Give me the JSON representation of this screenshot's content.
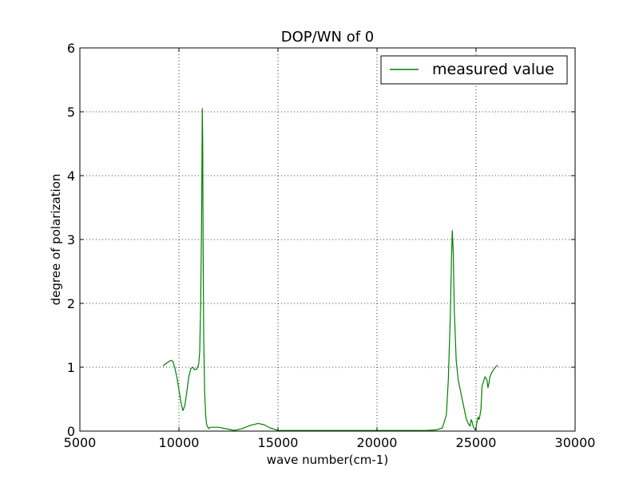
{
  "chart_data": {
    "type": "line",
    "title": "DOP/WN of 0",
    "xlabel": "wave number(cm-1)",
    "ylabel": "degree of polarization",
    "xlim": [
      5000,
      30000
    ],
    "ylim": [
      0,
      6
    ],
    "xticks": [
      5000,
      10000,
      15000,
      20000,
      25000,
      30000
    ],
    "yticks": [
      0,
      1,
      2,
      3,
      4,
      5,
      6
    ],
    "xtick_labels": [
      "5000",
      "10000",
      "15000",
      "20000",
      "25000",
      "30000"
    ],
    "ytick_labels": [
      "0",
      "1",
      "2",
      "3",
      "4",
      "5",
      "6"
    ],
    "grid": true,
    "legend_position": "top-right",
    "series": [
      {
        "name": "measured value",
        "color": "#008000",
        "x": [
          9200,
          9400,
          9600,
          9700,
          9800,
          9900,
          10000,
          10100,
          10200,
          10300,
          10400,
          10500,
          10600,
          10700,
          10800,
          10900,
          11000,
          11050,
          11100,
          11150,
          11180,
          11200,
          11220,
          11250,
          11300,
          11350,
          11400,
          11500,
          11600,
          12000,
          12500,
          12800,
          13200,
          13600,
          14000,
          14300,
          14600,
          15000,
          16000,
          18000,
          20000,
          22000,
          22500,
          23000,
          23300,
          23500,
          23600,
          23700,
          23760,
          23800,
          23850,
          23900,
          24000,
          24100,
          24200,
          24300,
          24400,
          24500,
          24600,
          24700,
          24750,
          24800,
          24850,
          24900,
          24950,
          25000,
          25050,
          25100,
          25150,
          25200,
          25250,
          25300,
          25350,
          25400,
          25450,
          25500,
          25550,
          25600,
          25650,
          25700,
          25800,
          25900,
          26000,
          26100
        ],
        "y": [
          1.02,
          1.07,
          1.11,
          1.09,
          0.98,
          0.84,
          0.65,
          0.45,
          0.32,
          0.4,
          0.62,
          0.85,
          0.98,
          1.0,
          0.96,
          0.97,
          1.05,
          1.25,
          2.0,
          3.5,
          5.05,
          4.6,
          3.0,
          1.5,
          0.6,
          0.25,
          0.1,
          0.04,
          0.06,
          0.06,
          0.03,
          0.01,
          0.04,
          0.09,
          0.12,
          0.1,
          0.05,
          0.01,
          0.01,
          0.01,
          0.01,
          0.01,
          0.01,
          0.02,
          0.05,
          0.25,
          0.8,
          1.8,
          2.7,
          3.14,
          2.8,
          1.9,
          1.1,
          0.8,
          0.65,
          0.5,
          0.35,
          0.2,
          0.12,
          0.08,
          0.18,
          0.15,
          0.08,
          0.05,
          0.02,
          0.05,
          0.15,
          0.22,
          0.18,
          0.25,
          0.35,
          0.7,
          0.75,
          0.8,
          0.85,
          0.83,
          0.8,
          0.68,
          0.75,
          0.85,
          0.92,
          0.97,
          1.01,
          1.03
        ]
      }
    ]
  }
}
